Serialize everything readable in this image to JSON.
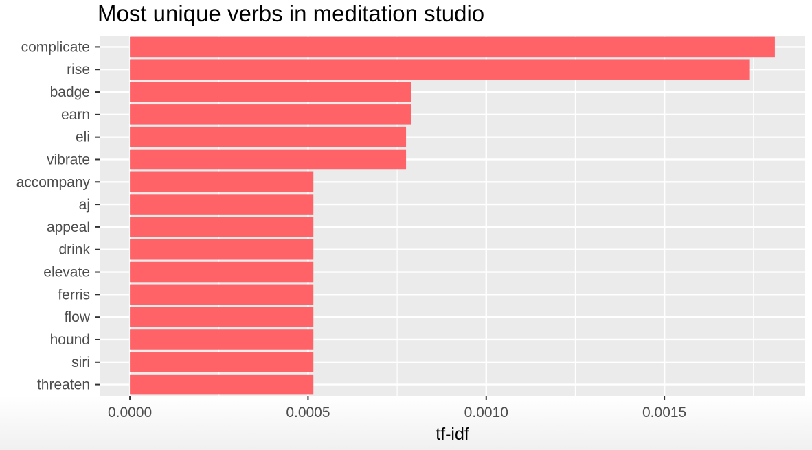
{
  "chart_data": {
    "type": "bar",
    "orientation": "horizontal",
    "title": "Most unique verbs in meditation studio",
    "xlabel": "tf-idf",
    "ylabel": "",
    "categories": [
      "complicate",
      "rise",
      "badge",
      "earn",
      "eli",
      "vibrate",
      "accompany",
      "aj",
      "appeal",
      "drink",
      "elevate",
      "ferris",
      "flow",
      "hound",
      "siri",
      "threaten"
    ],
    "values": [
      0.00181,
      0.00174,
      0.00079,
      0.00079,
      0.000775,
      0.000775,
      0.000515,
      0.000515,
      0.000515,
      0.000515,
      0.000515,
      0.000515,
      0.000515,
      0.000515,
      0.000515,
      0.000515
    ],
    "x_ticks": [
      0,
      0.0005,
      0.001,
      0.0015
    ],
    "x_tick_labels": [
      "0.0000",
      "0.0005",
      "0.0010",
      "0.0015"
    ],
    "xlim": [
      -8.5e-05,
      0.001895
    ],
    "bar_color": "#ff6368",
    "panel_background": "#ebebeb",
    "grid_color": "#ffffff",
    "grid": true,
    "legend": "none"
  }
}
